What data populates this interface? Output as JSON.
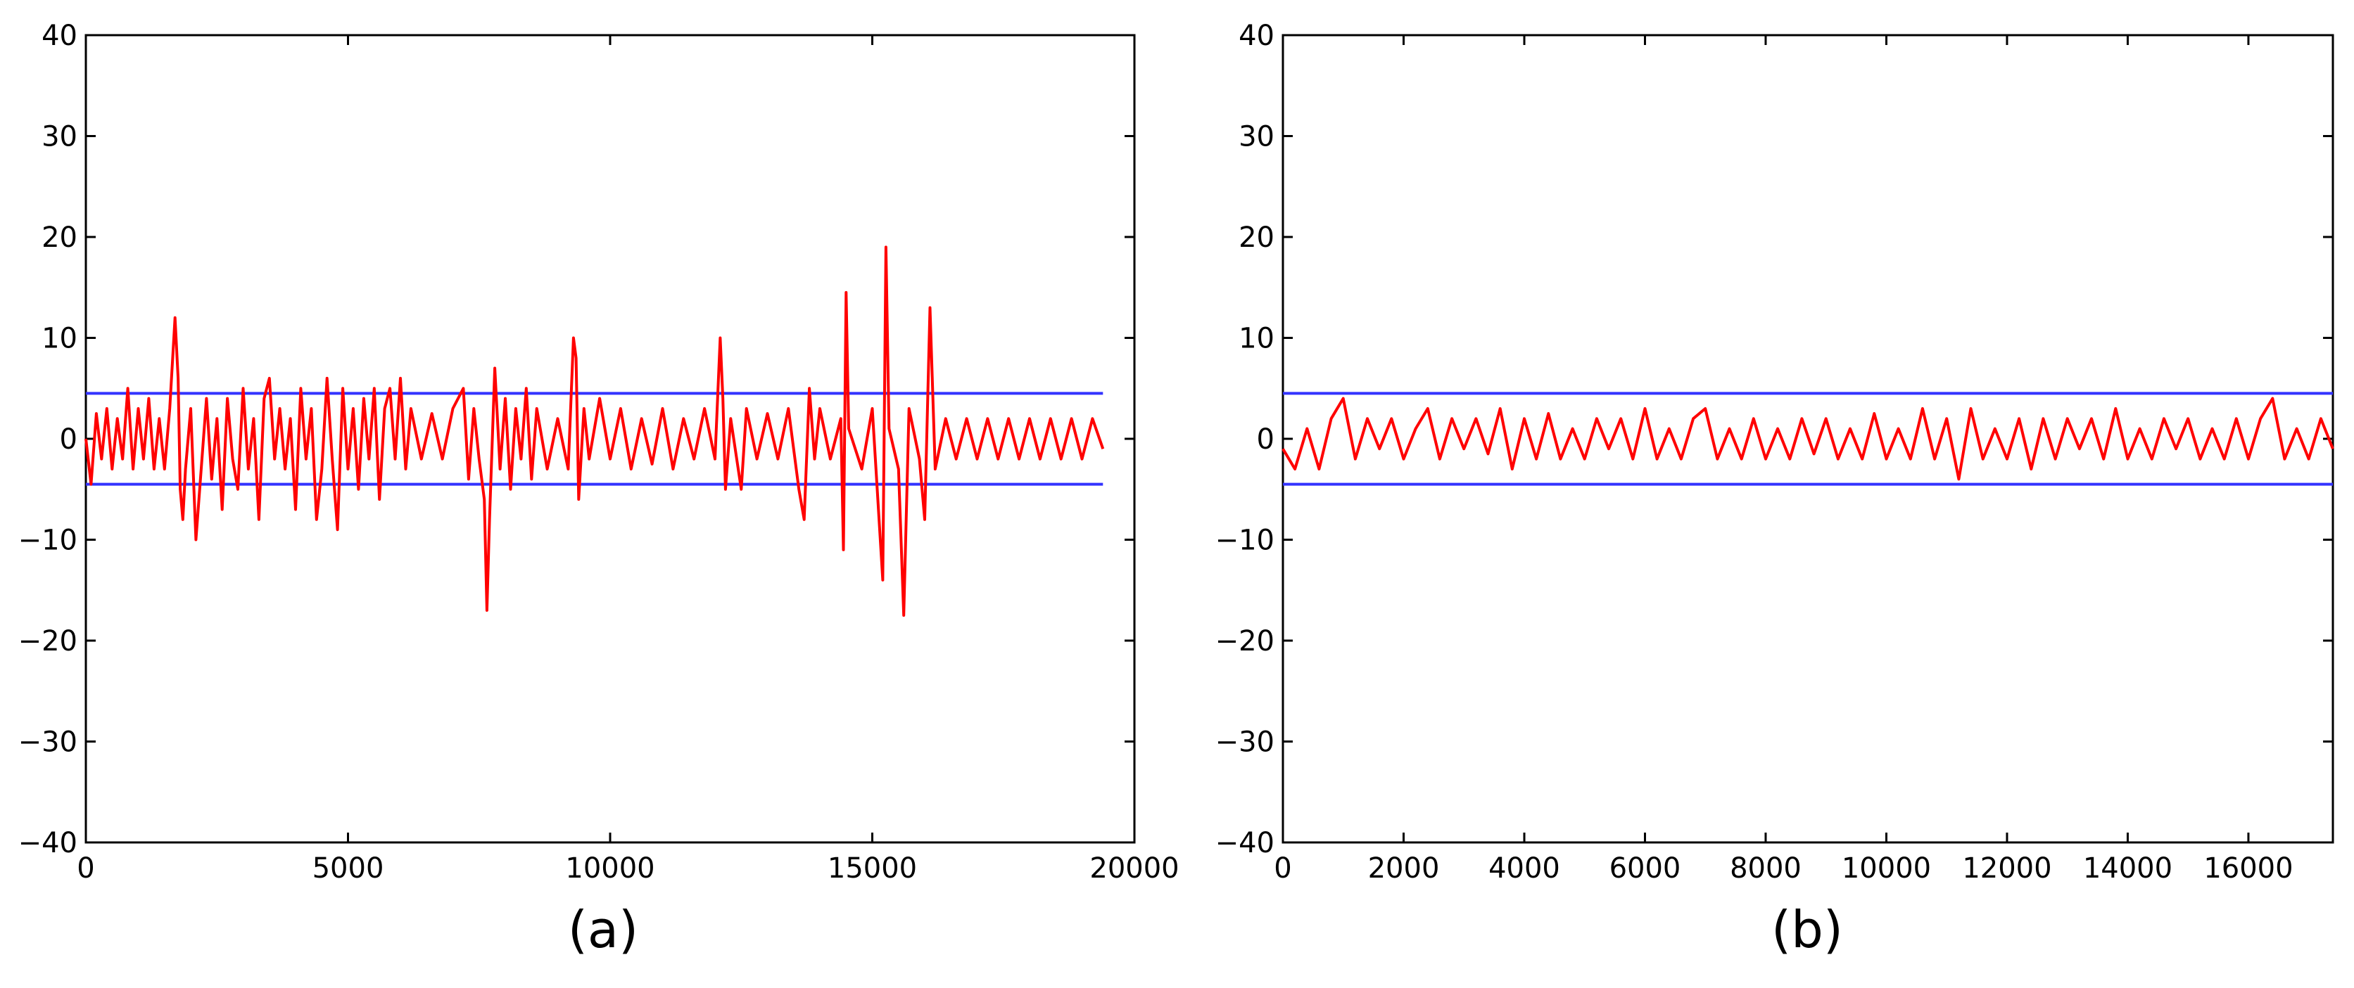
{
  "chart_data": [
    {
      "type": "line",
      "panel_label": "(a)",
      "xlim": [
        0,
        20000
      ],
      "ylim": [
        -40,
        40
      ],
      "x_ticks": [
        0,
        5000,
        10000,
        15000,
        20000
      ],
      "x_tick_labels": [
        "0",
        "5000",
        "10000",
        "15000",
        "20000"
      ],
      "y_ticks": [
        -40,
        -30,
        -20,
        -10,
        0,
        10,
        20,
        30,
        40
      ],
      "y_tick_labels": [
        "−40",
        "−30",
        "−20",
        "−10",
        "0",
        "10",
        "20",
        "30",
        "40"
      ],
      "grid": false,
      "x_extent": 19400,
      "thresholds": [
        4.5,
        -4.5
      ],
      "colors": {
        "signal": "#ff0000",
        "threshold": "#3333ff"
      },
      "series": [
        {
          "values": [
            [
              0,
              0
            ],
            [
              100,
              -4.5
            ],
            [
              200,
              2.5
            ],
            [
              300,
              -2
            ],
            [
              400,
              3
            ],
            [
              500,
              -3
            ],
            [
              600,
              2
            ],
            [
              700,
              -2
            ],
            [
              800,
              5
            ],
            [
              900,
              -3
            ],
            [
              1000,
              3
            ],
            [
              1100,
              -2
            ],
            [
              1200,
              4
            ],
            [
              1300,
              -3
            ],
            [
              1400,
              2
            ],
            [
              1500,
              -3
            ],
            [
              1600,
              3
            ],
            [
              1700,
              12
            ],
            [
              1760,
              6
            ],
            [
              1800,
              -5
            ],
            [
              1850,
              -8
            ],
            [
              1900,
              -3
            ],
            [
              2000,
              3
            ],
            [
              2100,
              -10
            ],
            [
              2200,
              -3
            ],
            [
              2300,
              4
            ],
            [
              2400,
              -4
            ],
            [
              2500,
              2
            ],
            [
              2600,
              -7
            ],
            [
              2700,
              4
            ],
            [
              2800,
              -2
            ],
            [
              2900,
              -5
            ],
            [
              3000,
              5
            ],
            [
              3100,
              -3
            ],
            [
              3200,
              2
            ],
            [
              3300,
              -8
            ],
            [
              3400,
              4
            ],
            [
              3500,
              6
            ],
            [
              3600,
              -2
            ],
            [
              3700,
              3
            ],
            [
              3800,
              -3
            ],
            [
              3900,
              2
            ],
            [
              4000,
              -7
            ],
            [
              4100,
              5
            ],
            [
              4200,
              -2
            ],
            [
              4300,
              3
            ],
            [
              4400,
              -8
            ],
            [
              4500,
              -3
            ],
            [
              4600,
              6
            ],
            [
              4700,
              -2
            ],
            [
              4800,
              -9
            ],
            [
              4900,
              5
            ],
            [
              5000,
              -3
            ],
            [
              5100,
              3
            ],
            [
              5200,
              -5
            ],
            [
              5300,
              4
            ],
            [
              5400,
              -2
            ],
            [
              5500,
              5
            ],
            [
              5600,
              -6
            ],
            [
              5700,
              3
            ],
            [
              5800,
              5
            ],
            [
              5900,
              -2
            ],
            [
              6000,
              6
            ],
            [
              6100,
              -3
            ],
            [
              6200,
              3
            ],
            [
              6400,
              -2
            ],
            [
              6600,
              2.5
            ],
            [
              6800,
              -2
            ],
            [
              7000,
              3
            ],
            [
              7200,
              5
            ],
            [
              7300,
              -4
            ],
            [
              7400,
              3
            ],
            [
              7500,
              -2
            ],
            [
              7600,
              -6
            ],
            [
              7650,
              -17
            ],
            [
              7700,
              -8
            ],
            [
              7800,
              7
            ],
            [
              7900,
              -3
            ],
            [
              8000,
              4
            ],
            [
              8100,
              -5
            ],
            [
              8200,
              3
            ],
            [
              8300,
              -2
            ],
            [
              8400,
              5
            ],
            [
              8500,
              -4
            ],
            [
              8600,
              3
            ],
            [
              8800,
              -3
            ],
            [
              9000,
              2
            ],
            [
              9200,
              -3
            ],
            [
              9300,
              10
            ],
            [
              9350,
              8
            ],
            [
              9400,
              -6
            ],
            [
              9500,
              3
            ],
            [
              9600,
              -2
            ],
            [
              9800,
              4
            ],
            [
              10000,
              -2
            ],
            [
              10200,
              3
            ],
            [
              10400,
              -3
            ],
            [
              10600,
              2
            ],
            [
              10800,
              -2.5
            ],
            [
              11000,
              3
            ],
            [
              11200,
              -3
            ],
            [
              11400,
              2
            ],
            [
              11600,
              -2
            ],
            [
              11800,
              3
            ],
            [
              12000,
              -2
            ],
            [
              12100,
              10
            ],
            [
              12150,
              4
            ],
            [
              12200,
              -5
            ],
            [
              12300,
              2
            ],
            [
              12500,
              -5
            ],
            [
              12600,
              3
            ],
            [
              12800,
              -2
            ],
            [
              13000,
              2.5
            ],
            [
              13200,
              -2
            ],
            [
              13400,
              3
            ],
            [
              13600,
              -5
            ],
            [
              13700,
              -8
            ],
            [
              13800,
              5
            ],
            [
              13900,
              -2
            ],
            [
              14000,
              3
            ],
            [
              14200,
              -2
            ],
            [
              14400,
              2
            ],
            [
              14450,
              -11
            ],
            [
              14500,
              14.5
            ],
            [
              14550,
              1
            ],
            [
              14800,
              -3
            ],
            [
              15000,
              3
            ],
            [
              15200,
              -14
            ],
            [
              15260,
              19
            ],
            [
              15320,
              1
            ],
            [
              15500,
              -3
            ],
            [
              15600,
              -17.5
            ],
            [
              15700,
              3
            ],
            [
              15900,
              -2
            ],
            [
              16000,
              -8
            ],
            [
              16100,
              13
            ],
            [
              16200,
              -3
            ],
            [
              16400,
              2
            ],
            [
              16600,
              -2
            ],
            [
              16800,
              2
            ],
            [
              17000,
              -2
            ],
            [
              17200,
              2
            ],
            [
              17400,
              -2
            ],
            [
              17600,
              2
            ],
            [
              17800,
              -2
            ],
            [
              18000,
              2
            ],
            [
              18200,
              -2
            ],
            [
              18400,
              2
            ],
            [
              18600,
              -2
            ],
            [
              18800,
              2
            ],
            [
              19000,
              -2
            ],
            [
              19200,
              2
            ],
            [
              19400,
              -1
            ]
          ]
        }
      ]
    },
    {
      "type": "line",
      "panel_label": "(b)",
      "xlim": [
        0,
        17400
      ],
      "ylim": [
        -40,
        40
      ],
      "x_ticks": [
        0,
        2000,
        4000,
        6000,
        8000,
        10000,
        12000,
        14000,
        16000
      ],
      "x_tick_labels": [
        "0",
        "2000",
        "4000",
        "6000",
        "8000",
        "10000",
        "12000",
        "14000",
        "16000"
      ],
      "y_ticks": [
        -40,
        -30,
        -20,
        -10,
        0,
        10,
        20,
        30,
        40
      ],
      "y_tick_labels": [
        "−40",
        "−30",
        "−20",
        "−10",
        "0",
        "10",
        "20",
        "30",
        "40"
      ],
      "grid": false,
      "x_extent": 17400,
      "thresholds": [
        4.5,
        -4.5
      ],
      "colors": {
        "signal": "#ff0000",
        "threshold": "#3333ff"
      },
      "series": [
        {
          "values": [
            [
              0,
              -1
            ],
            [
              200,
              -3
            ],
            [
              400,
              1
            ],
            [
              600,
              -3
            ],
            [
              800,
              2
            ],
            [
              1000,
              4
            ],
            [
              1200,
              -2
            ],
            [
              1400,
              2
            ],
            [
              1600,
              -1
            ],
            [
              1800,
              2
            ],
            [
              2000,
              -2
            ],
            [
              2200,
              1
            ],
            [
              2400,
              3
            ],
            [
              2600,
              -2
            ],
            [
              2800,
              2
            ],
            [
              3000,
              -1
            ],
            [
              3200,
              2
            ],
            [
              3400,
              -1.5
            ],
            [
              3600,
              3
            ],
            [
              3800,
              -3
            ],
            [
              4000,
              2
            ],
            [
              4200,
              -2
            ],
            [
              4400,
              2.5
            ],
            [
              4600,
              -2
            ],
            [
              4800,
              1
            ],
            [
              5000,
              -2
            ],
            [
              5200,
              2
            ],
            [
              5400,
              -1
            ],
            [
              5600,
              2
            ],
            [
              5800,
              -2
            ],
            [
              6000,
              3
            ],
            [
              6200,
              -2
            ],
            [
              6400,
              1
            ],
            [
              6600,
              -2
            ],
            [
              6800,
              2
            ],
            [
              7000,
              3
            ],
            [
              7200,
              -2
            ],
            [
              7400,
              1
            ],
            [
              7600,
              -2
            ],
            [
              7800,
              2
            ],
            [
              8000,
              -2
            ],
            [
              8200,
              1
            ],
            [
              8400,
              -2
            ],
            [
              8600,
              2
            ],
            [
              8800,
              -1.5
            ],
            [
              9000,
              2
            ],
            [
              9200,
              -2
            ],
            [
              9400,
              1
            ],
            [
              9600,
              -2
            ],
            [
              9800,
              2.5
            ],
            [
              10000,
              -2
            ],
            [
              10200,
              1
            ],
            [
              10400,
              -2
            ],
            [
              10600,
              3
            ],
            [
              10800,
              -2
            ],
            [
              11000,
              2
            ],
            [
              11200,
              -4
            ],
            [
              11400,
              3
            ],
            [
              11600,
              -2
            ],
            [
              11800,
              1
            ],
            [
              12000,
              -2
            ],
            [
              12200,
              2
            ],
            [
              12400,
              -3
            ],
            [
              12600,
              2
            ],
            [
              12800,
              -2
            ],
            [
              13000,
              2
            ],
            [
              13200,
              -1
            ],
            [
              13400,
              2
            ],
            [
              13600,
              -2
            ],
            [
              13800,
              3
            ],
            [
              14000,
              -2
            ],
            [
              14200,
              1
            ],
            [
              14400,
              -2
            ],
            [
              14600,
              2
            ],
            [
              14800,
              -1
            ],
            [
              15000,
              2
            ],
            [
              15200,
              -2
            ],
            [
              15400,
              1
            ],
            [
              15600,
              -2
            ],
            [
              15800,
              2
            ],
            [
              16000,
              -2
            ],
            [
              16200,
              2
            ],
            [
              16400,
              4
            ],
            [
              16600,
              -2
            ],
            [
              16800,
              1
            ],
            [
              17000,
              -2
            ],
            [
              17200,
              2
            ],
            [
              17400,
              -1
            ]
          ]
        }
      ]
    }
  ]
}
